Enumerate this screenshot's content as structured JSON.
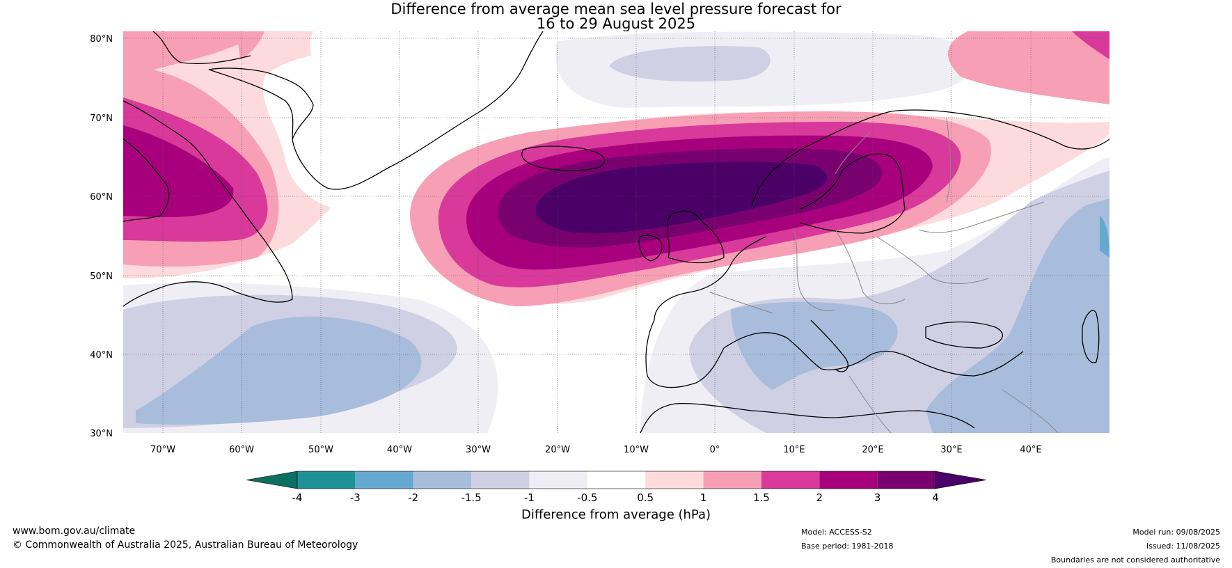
{
  "title_line1": "Difference from average mean sea level pressure forecast for",
  "title_line2": "16 to 29 August 2025",
  "map": {
    "lat_labels": [
      "80°N",
      "70°N",
      "60°N",
      "50°N",
      "40°N",
      "30°N"
    ],
    "lon_labels": [
      "70°W",
      "60°W",
      "50°W",
      "40°W",
      "30°W",
      "20°W",
      "10°W",
      "0°",
      "10°E",
      "20°E",
      "30°E",
      "40°E"
    ],
    "lat_range": [
      30,
      80
    ],
    "lon_range": [
      -75,
      50
    ]
  },
  "colorbar": {
    "ticks": [
      "-4",
      "-3",
      "-2",
      "-1.5",
      "-1",
      "-0.5",
      "0.5",
      "1",
      "1.5",
      "2",
      "3",
      "4"
    ],
    "colors": [
      "#0c6f61",
      "#1e9198",
      "#64a9d1",
      "#a8bcdc",
      "#cfd0e4",
      "#f0eef5",
      "#ffffff",
      "#fddadb",
      "#f79fb5",
      "#d8399a",
      "#a8007d",
      "#79006f",
      "#4a0066"
    ],
    "label": "Difference from average (hPa)"
  },
  "footer": {
    "website": "www.bom.gov.au/climate",
    "copyright": "© Commonwealth of Australia 2025, Australian Bureau of Meteorology",
    "model": "Model: ACCESS-S2",
    "base_period": "Base period: 1981-2018",
    "model_run": "Model run: 09/08/2025",
    "issued": "Issued: 11/08/2025",
    "disclaimer": "Boundaries are not considered authoritative"
  }
}
